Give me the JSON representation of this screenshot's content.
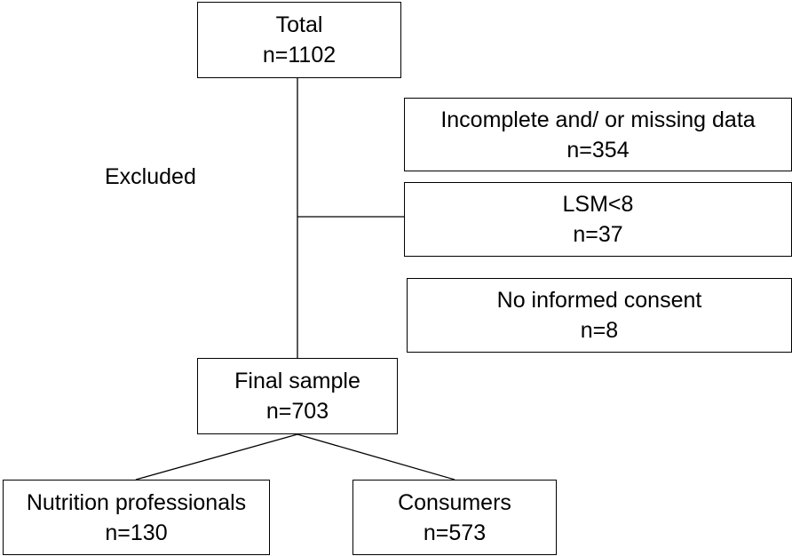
{
  "diagram": {
    "excluded_label": "Excluded",
    "nodes": {
      "total": {
        "title": "Total",
        "count": "n=1102"
      },
      "incomplete": {
        "title": "Incomplete and/ or missing data",
        "count": "n=354"
      },
      "lsm": {
        "title": "LSM<8",
        "count": "n=37"
      },
      "consent": {
        "title": "No informed consent",
        "count": "n=8"
      },
      "final": {
        "title": "Final sample",
        "count": "n=703"
      },
      "nutrition": {
        "title": "Nutrition professionals",
        "count": "n=130"
      },
      "consumers": {
        "title": "Consumers",
        "count": "n=573"
      }
    },
    "edges": [
      {
        "from": "total",
        "to": "final"
      },
      {
        "from": "total-final-trunk",
        "to": "lsm"
      },
      {
        "from": "final",
        "to": "nutrition"
      },
      {
        "from": "final",
        "to": "consumers"
      }
    ],
    "line_color": "#000000"
  }
}
